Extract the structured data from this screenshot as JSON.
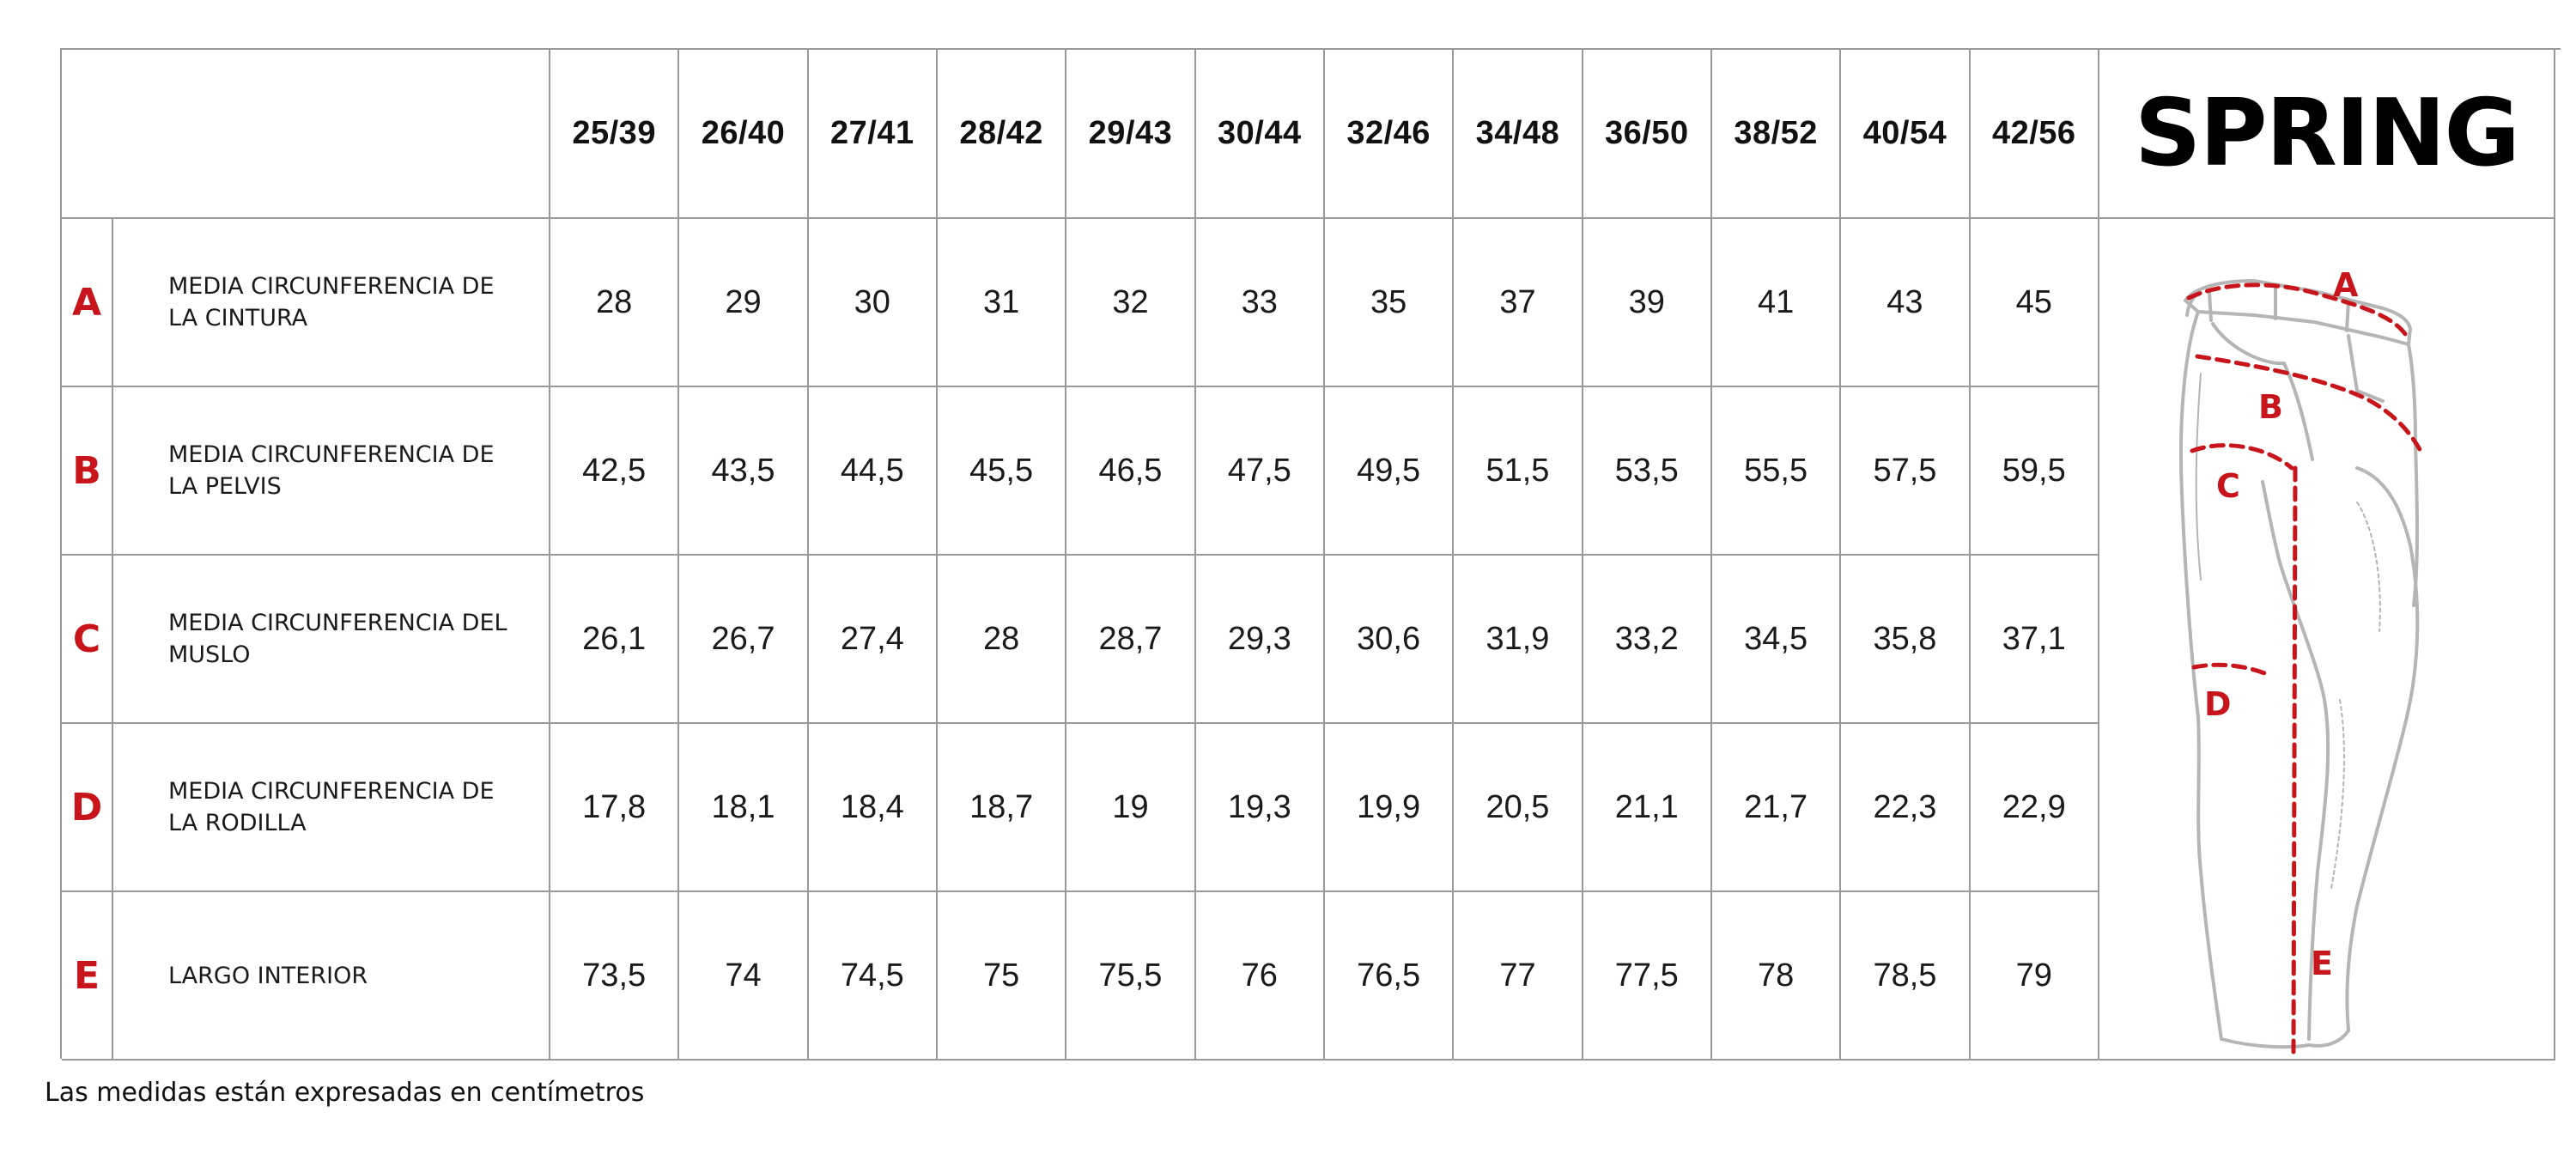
{
  "brand": "SPRING",
  "sizes": [
    "25/39",
    "26/40",
    "27/41",
    "28/42",
    "29/43",
    "30/44",
    "32/46",
    "34/48",
    "36/50",
    "38/52",
    "40/54",
    "42/56"
  ],
  "rows": [
    {
      "letter": "A",
      "label": "MEDIA CIRCUNFERENCIA DE LA CINTURA",
      "values": [
        "28",
        "29",
        "30",
        "31",
        "32",
        "33",
        "35",
        "37",
        "39",
        "41",
        "43",
        "45"
      ]
    },
    {
      "letter": "B",
      "label": "MEDIA CIRCUNFERENCIA DE LA PELVIS",
      "values": [
        "42,5",
        "43,5",
        "44,5",
        "45,5",
        "46,5",
        "47,5",
        "49,5",
        "51,5",
        "53,5",
        "55,5",
        "57,5",
        "59,5"
      ]
    },
    {
      "letter": "C",
      "label": "MEDIA CIRCUNFERENCIA DEL MUSLO",
      "values": [
        "26,1",
        "26,7",
        "27,4",
        "28",
        "28,7",
        "29,3",
        "30,6",
        "31,9",
        "33,2",
        "34,5",
        "35,8",
        "37,1"
      ]
    },
    {
      "letter": "D",
      "label": "MEDIA CIRCUNFERENCIA DE LA RODILLA",
      "values": [
        "17,8",
        "18,1",
        "18,4",
        "18,7",
        "19",
        "19,3",
        "19,9",
        "20,5",
        "21,1",
        "21,7",
        "22,3",
        "22,9"
      ]
    },
    {
      "letter": "E",
      "label": "LARGO INTERIOR",
      "values": [
        "73,5",
        "74",
        "74,5",
        "75",
        "75,5",
        "76",
        "76,5",
        "77",
        "77,5",
        "78",
        "78,5",
        "79"
      ]
    }
  ],
  "figure_markers": [
    "A",
    "B",
    "C",
    "D",
    "E"
  ],
  "footnote": "Las medidas están expresadas en centímetros",
  "colors": {
    "accent": "#c8151b",
    "grid": "#9a9a9a",
    "outline": "#b5b5b5"
  }
}
